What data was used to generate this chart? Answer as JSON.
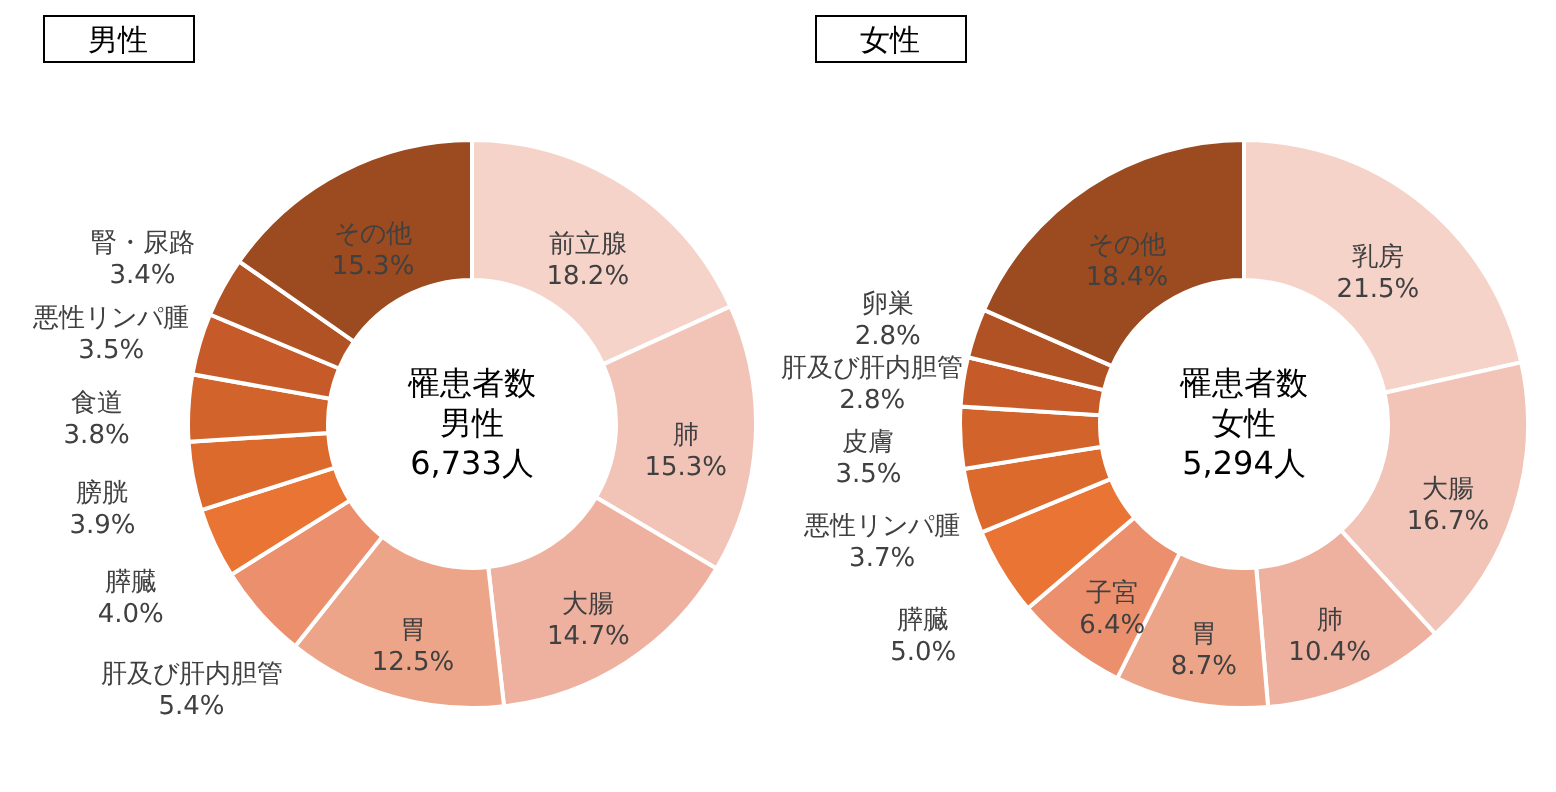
{
  "chart_data": [
    {
      "type": "donut",
      "title": "男性",
      "annotations": [
        "罹患者数",
        "男性",
        "6,733人"
      ],
      "categories": [
        "前立腺",
        "肺",
        "大腸",
        "胃",
        "肝及び肝内胆管",
        "膵臓",
        "膀胱",
        "食道",
        "悪性リンパ腫",
        "腎・尿路",
        "その他"
      ],
      "values": [
        18.2,
        15.3,
        14.7,
        12.5,
        5.4,
        4.0,
        3.9,
        3.8,
        3.5,
        3.4,
        15.3
      ],
      "value_labels": [
        "18.2%",
        "15.3%",
        "14.7%",
        "12.5%",
        "5.4%",
        "4.0%",
        "3.9%",
        "3.8%",
        "3.5%",
        "3.4%",
        "15.3%"
      ],
      "colors": [
        "#f5d3c9",
        "#f2c3b7",
        "#efb19f",
        "#eda58a",
        "#eb8f6c",
        "#e97434",
        "#dc6a2d",
        "#d2632b",
        "#c65a28",
        "#b05223",
        "#9c4a1f"
      ]
    },
    {
      "type": "donut",
      "title": "女性",
      "annotations": [
        "罹患者数",
        "女性",
        "5,294人"
      ],
      "categories": [
        "乳房",
        "大腸",
        "肺",
        "胃",
        "子宮",
        "膵臓",
        "悪性リンパ腫",
        "皮膚",
        "肝及び肝内胆管",
        "卵巣",
        "その他"
      ],
      "values": [
        21.5,
        16.7,
        10.4,
        8.7,
        6.4,
        5.0,
        3.7,
        3.5,
        2.8,
        2.8,
        18.4
      ],
      "value_labels": [
        "21.5%",
        "16.7%",
        "10.4%",
        "8.7%",
        "6.4%",
        "5.0%",
        "3.7%",
        "3.5%",
        "2.8%",
        "2.8%",
        "18.4%"
      ],
      "colors": [
        "#f5d3c9",
        "#f2c3b7",
        "#efb19f",
        "#eda58a",
        "#eb8f6c",
        "#e97434",
        "#dc6a2d",
        "#d2632b",
        "#c65a28",
        "#b05223",
        "#9c4a1f"
      ]
    }
  ]
}
